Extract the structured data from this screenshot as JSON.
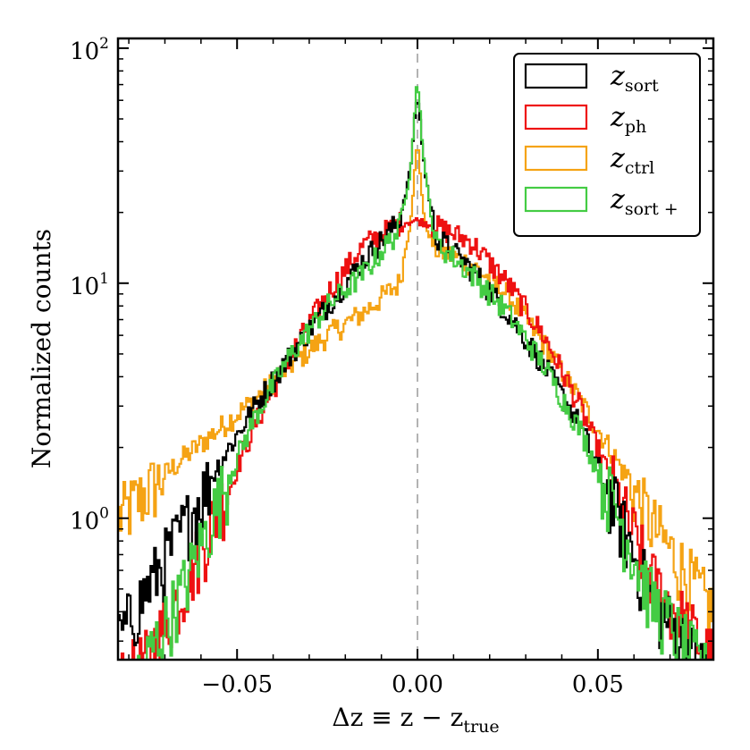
{
  "chart_data": {
    "type": "step-histogram",
    "title": "",
    "xlabel": {
      "main": "Δz ≡ z − z",
      "sub": "true"
    },
    "ylabel": "Normalized counts",
    "xlim": [
      -0.083,
      0.082
    ],
    "ylim": [
      0.25,
      110
    ],
    "yscale": "log",
    "xticks": [
      -0.05,
      0.0,
      0.05
    ],
    "xtick_labels": [
      "−0.05",
      "0.00",
      "0.05"
    ],
    "yticks": [
      1,
      10,
      100
    ],
    "ytick_labels": [
      {
        "base": "10",
        "exp": "0"
      },
      {
        "base": "10",
        "exp": "1"
      },
      {
        "base": "10",
        "exp": "2"
      }
    ],
    "reference_line": {
      "x": 0.0,
      "style": "dashed",
      "color": "#9a9a9a"
    },
    "legend_position": "top-right",
    "series": [
      {
        "name": "z_sort",
        "symbol": "z",
        "sub": "sort",
        "color": "#000000",
        "x": [
          -0.083,
          -0.075,
          -0.065,
          -0.055,
          -0.045,
          -0.035,
          -0.025,
          -0.015,
          -0.005,
          -0.002,
          0.0,
          0.002,
          0.005,
          0.015,
          0.025,
          0.035,
          0.045,
          0.055,
          0.065,
          0.082
        ],
        "y": [
          0.3,
          0.5,
          0.9,
          1.7,
          3.0,
          5.0,
          8.0,
          12.5,
          18.5,
          30,
          65,
          30,
          16,
          11.5,
          7.5,
          4.5,
          2.5,
          1.1,
          0.45,
          0.2
        ]
      },
      {
        "name": "z_ph",
        "symbol": "z",
        "sub": "ph",
        "color": "#ee1111",
        "x": [
          -0.083,
          -0.075,
          -0.065,
          -0.055,
          -0.045,
          -0.035,
          -0.025,
          -0.015,
          -0.005,
          0.0,
          0.005,
          0.015,
          0.025,
          0.035,
          0.045,
          0.055,
          0.065,
          0.082
        ],
        "y": [
          0.2,
          0.25,
          0.5,
          1.1,
          2.5,
          5.0,
          9.0,
          14.5,
          18.0,
          18.5,
          17.5,
          15.0,
          10.0,
          6.0,
          3.0,
          1.3,
          0.55,
          0.25
        ]
      },
      {
        "name": "z_ctrl",
        "symbol": "z",
        "sub": "ctrl",
        "color": "#f5a314",
        "x": [
          -0.083,
          -0.075,
          -0.065,
          -0.055,
          -0.045,
          -0.035,
          -0.025,
          -0.015,
          -0.005,
          -0.002,
          0.0,
          0.002,
          0.005,
          0.015,
          0.025,
          0.035,
          0.045,
          0.055,
          0.065,
          0.082
        ],
        "y": [
          1.0,
          1.3,
          1.8,
          2.4,
          3.2,
          4.5,
          6.0,
          7.5,
          10.0,
          18.0,
          40,
          18.0,
          14.0,
          12.0,
          9.0,
          5.5,
          3.2,
          1.8,
          0.95,
          0.4
        ]
      },
      {
        "name": "z_sort+",
        "symbol": "z",
        "sub": "sort +",
        "color": "#44cc44",
        "x": [
          -0.083,
          -0.075,
          -0.065,
          -0.055,
          -0.045,
          -0.035,
          -0.025,
          -0.015,
          -0.005,
          -0.002,
          0.0,
          0.002,
          0.005,
          0.015,
          0.025,
          0.035,
          0.045,
          0.055,
          0.065,
          0.082
        ],
        "y": [
          0.15,
          0.25,
          0.5,
          1.2,
          2.7,
          5.0,
          8.0,
          11.0,
          17.0,
          30,
          75,
          30,
          15.0,
          11.0,
          7.5,
          4.5,
          2.4,
          1.1,
          0.45,
          0.2
        ]
      }
    ]
  }
}
